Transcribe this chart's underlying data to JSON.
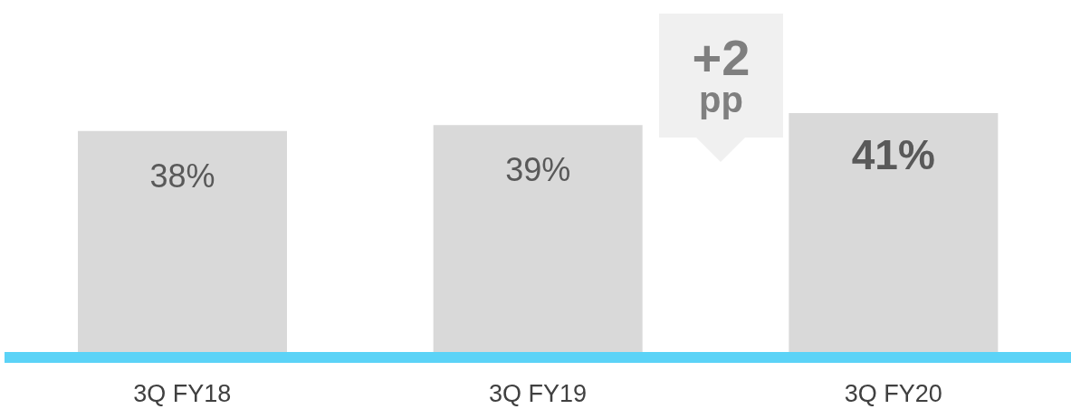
{
  "chart_data": {
    "type": "bar",
    "categories": [
      "3Q FY18",
      "3Q FY19",
      "3Q FY20"
    ],
    "values": [
      38,
      39,
      41
    ],
    "value_labels": [
      "38%",
      "39%",
      "41%"
    ],
    "color": "#d9d9d9",
    "annotations": [
      "+2\npp"
    ]
  }
}
